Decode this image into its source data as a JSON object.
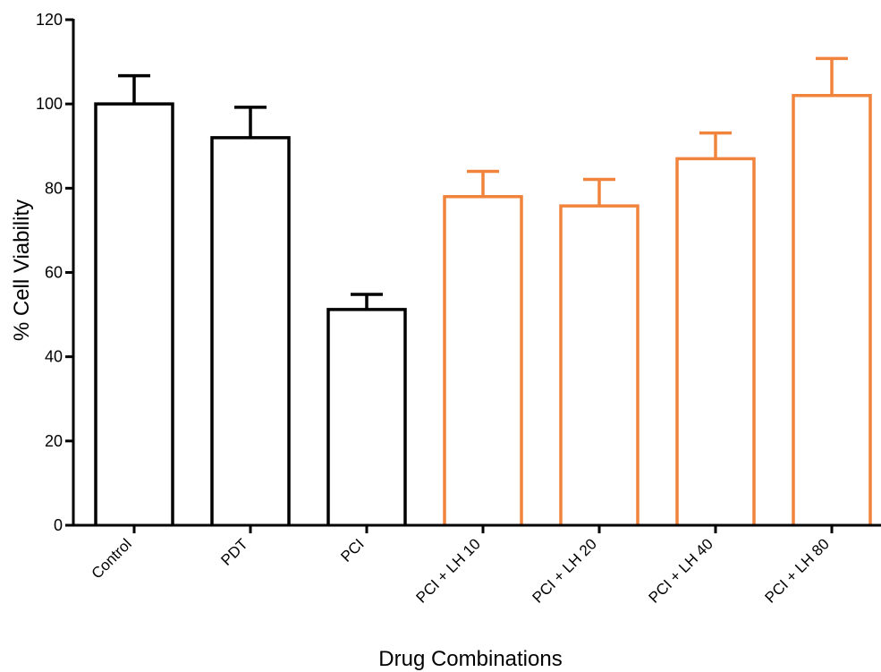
{
  "chart_data": {
    "type": "bar",
    "title": "",
    "xlabel": "Drug Combinations",
    "ylabel": "% Cell Viability",
    "ylim": [
      0,
      120
    ],
    "yticks": [
      0,
      20,
      40,
      60,
      80,
      100,
      120
    ],
    "grid": false,
    "categories": [
      "Control",
      "PDT",
      "PCI",
      "PCI + LH 10",
      "PCI + LH 20",
      "PCI + LH 40",
      "PCI + LH 80"
    ],
    "values": [
      100,
      92,
      51.2,
      78,
      75.8,
      87,
      102
    ],
    "error_upper": [
      6.7,
      7.2,
      3.6,
      6.0,
      6.3,
      6.1,
      8.8
    ],
    "bar_colors": [
      "#000000",
      "#000000",
      "#000000",
      "#f0843c",
      "#f0843c",
      "#f0843c",
      "#f0843c"
    ]
  }
}
